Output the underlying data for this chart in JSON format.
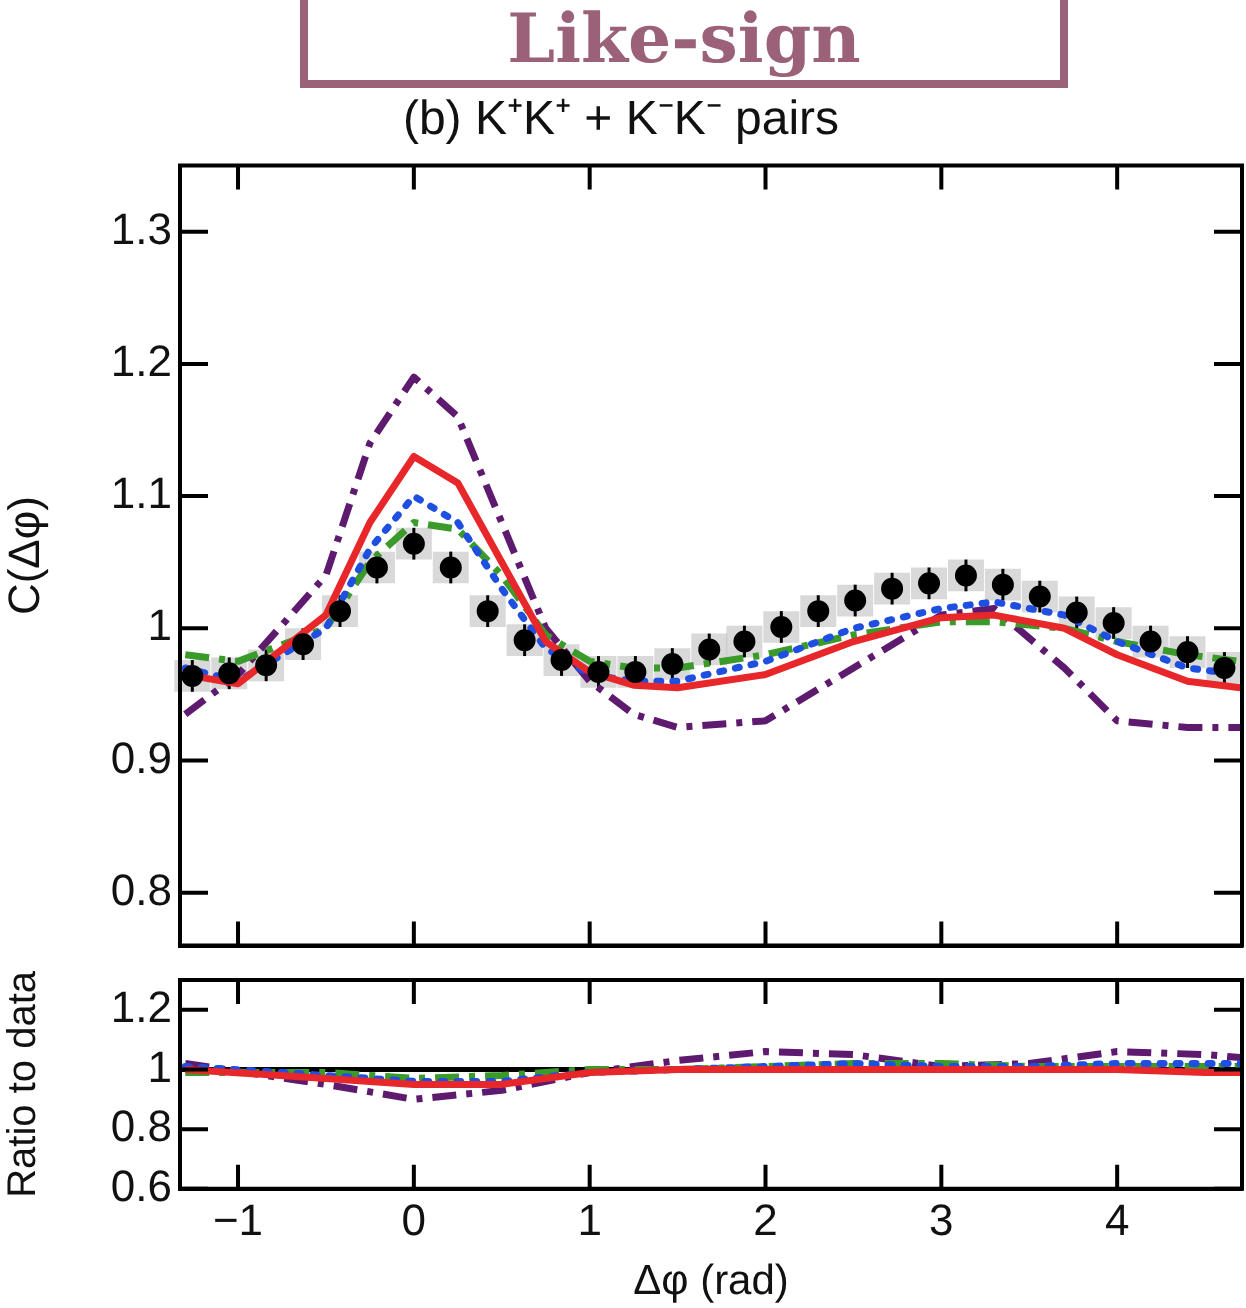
{
  "chart_data": [
    {
      "type": "line",
      "title": "(b) K⁺K⁺ + K⁻K⁻ pairs",
      "ylabel": "C(Δφ)",
      "annotations": [
        "Like-sign"
      ],
      "xlim": [
        -1.33,
        4.71
      ],
      "xticks": [
        {
          "value": -1,
          "label": null
        },
        {
          "value": 0,
          "label": null
        },
        {
          "value": 1,
          "label": null
        },
        {
          "value": 2,
          "label": null
        },
        {
          "value": 3,
          "label": null
        },
        {
          "value": 4,
          "label": null
        }
      ],
      "ylim": [
        0.76,
        1.35
      ],
      "yticks": [
        0.8,
        0.9,
        1,
        1.1,
        1.2,
        1.3
      ],
      "tick_labels": "y",
      "grid": false,
      "legend": false,
      "series": [
        {
          "type": "line",
          "color": "#5e1a6e",
          "line_style": "dashed",
          "x": [
            -1.3,
            -1,
            -0.5,
            -0.25,
            0,
            0.25,
            0.5,
            0.75,
            1,
            1.25,
            1.5,
            2,
            2.5,
            3,
            3.3,
            3.7,
            4,
            4.4,
            4.7
          ],
          "values": [
            0.935,
            0.965,
            1.04,
            1.14,
            1.19,
            1.16,
            1.08,
            1.0,
            0.96,
            0.935,
            0.925,
            0.93,
            0.97,
            1.01,
            1.015,
            0.97,
            0.93,
            0.925,
            0.925
          ]
        },
        {
          "type": "line",
          "color": "#3a9a2a",
          "line_style": "dashed",
          "x": [
            -1.3,
            -1,
            -0.5,
            -0.25,
            0,
            0.25,
            0.5,
            0.75,
            1,
            1.25,
            1.5,
            2,
            2.5,
            3,
            3.3,
            3.7,
            4,
            4.4,
            4.7
          ],
          "values": [
            0.98,
            0.975,
            1.0,
            1.05,
            1.08,
            1.075,
            1.04,
            0.995,
            0.975,
            0.97,
            0.97,
            0.98,
            0.995,
            1.005,
            1.005,
            1.0,
            0.99,
            0.98,
            0.975
          ]
        },
        {
          "type": "line",
          "color": "#1f4fe0",
          "line_style": "dotted",
          "x": [
            -1.3,
            -1,
            -0.5,
            -0.25,
            0,
            0.25,
            0.5,
            0.75,
            1,
            1.25,
            1.5,
            2,
            2.5,
            3,
            3.3,
            3.7,
            4,
            4.4,
            4.7
          ],
          "values": [
            0.97,
            0.96,
            1.0,
            1.06,
            1.1,
            1.08,
            1.03,
            0.985,
            0.965,
            0.96,
            0.96,
            0.975,
            1.0,
            1.015,
            1.02,
            1.01,
            0.99,
            0.97,
            0.965
          ]
        },
        {
          "type": "line",
          "color": "#e8272a",
          "line_style": "solid",
          "x": [
            -1.3,
            -1,
            -0.5,
            -0.25,
            0,
            0.25,
            0.5,
            0.75,
            1,
            1.25,
            1.5,
            2,
            2.5,
            3,
            3.3,
            3.7,
            4,
            4.4,
            4.7
          ],
          "values": [
            0.965,
            0.958,
            1.01,
            1.08,
            1.13,
            1.11,
            1.05,
            0.99,
            0.967,
            0.957,
            0.955,
            0.965,
            0.99,
            1.008,
            1.01,
            1.0,
            0.98,
            0.96,
            0.955
          ]
        },
        {
          "type": "scatter",
          "color": "#000000",
          "marker": "circle",
          "x": [
            -1.26,
            -1.05,
            -0.84,
            -0.63,
            -0.42,
            -0.21,
            0,
            0.21,
            0.42,
            0.63,
            0.84,
            1.05,
            1.26,
            1.47,
            1.68,
            1.88,
            2.09,
            2.3,
            2.51,
            2.72,
            2.93,
            3.14,
            3.35,
            3.56,
            3.77,
            3.98,
            4.19,
            4.4,
            4.61
          ],
          "values": [
            0.964,
            0.966,
            0.972,
            0.988,
            1.013,
            1.046,
            1.064,
            1.046,
            1.013,
            0.991,
            0.976,
            0.967,
            0.967,
            0.973,
            0.984,
            0.99,
            1.001,
            1.013,
            1.021,
            1.03,
            1.034,
            1.04,
            1.033,
            1.024,
            1.012,
            1.004,
            0.99,
            0.982,
            0.97
          ],
          "errors": [
            0.012,
            0.012,
            0.012,
            0.012,
            0.012,
            0.012,
            0.012,
            0.012,
            0.012,
            0.012,
            0.012,
            0.012,
            0.012,
            0.012,
            0.012,
            0.012,
            0.012,
            0.012,
            0.012,
            0.012,
            0.012,
            0.012,
            0.012,
            0.012,
            0.012,
            0.012,
            0.012,
            0.012,
            0.012
          ]
        }
      ]
    },
    {
      "type": "line",
      "xlabel": "Δφ (rad)",
      "ylabel": "Ratio to data",
      "xlim": [
        -1.33,
        4.71
      ],
      "xticks": [
        {
          "value": -1,
          "label": "−1"
        },
        0,
        1,
        2,
        3,
        4
      ],
      "ylim": [
        0.6,
        1.3
      ],
      "yticks": [
        0.6,
        0.8,
        1,
        1.2
      ],
      "grid": false,
      "legend": false,
      "ref_lines": [
        {
          "axis": "y",
          "value": 1,
          "color": "#000000"
        }
      ],
      "series": [
        {
          "type": "line",
          "color": "#5e1a6e",
          "line_style": "dashed",
          "x": [
            -1.3,
            -0.5,
            0,
            0.5,
            1,
            1.5,
            2,
            2.5,
            3,
            3.5,
            4,
            4.5,
            4.7
          ],
          "values": [
            1.02,
            0.95,
            0.9,
            0.93,
            0.99,
            1.03,
            1.06,
            1.05,
            1.01,
            1.02,
            1.06,
            1.05,
            1.04
          ]
        },
        {
          "type": "line",
          "color": "#3a9a2a",
          "line_style": "dashed",
          "x": [
            -1.3,
            -0.5,
            0,
            0.5,
            1,
            1.5,
            2,
            2.5,
            3,
            3.5,
            4,
            4.5,
            4.7
          ],
          "values": [
            0.99,
            0.99,
            0.97,
            0.98,
            1.0,
            1.0,
            1.01,
            1.02,
            1.02,
            1.01,
            1.01,
            1.01,
            1.01
          ]
        },
        {
          "type": "line",
          "color": "#1f4fe0",
          "line_style": "dotted",
          "x": [
            -1.3,
            -0.5,
            0,
            0.5,
            1,
            1.5,
            2,
            2.5,
            3,
            3.5,
            4,
            4.5,
            4.7
          ],
          "values": [
            1.01,
            0.98,
            0.96,
            0.96,
            0.99,
            1.0,
            1.01,
            1.02,
            1.01,
            1.01,
            1.02,
            1.02,
            1.02
          ]
        },
        {
          "type": "line",
          "color": "#e8272a",
          "line_style": "solid",
          "x": [
            -1.3,
            -0.5,
            0,
            0.5,
            1,
            1.5,
            2,
            2.5,
            3,
            3.5,
            4,
            4.5,
            4.7
          ],
          "values": [
            1.0,
            0.97,
            0.95,
            0.95,
            0.99,
            1.0,
            1.0,
            1.0,
            1.0,
            1.0,
            1.0,
            0.99,
            0.99
          ]
        }
      ]
    }
  ]
}
